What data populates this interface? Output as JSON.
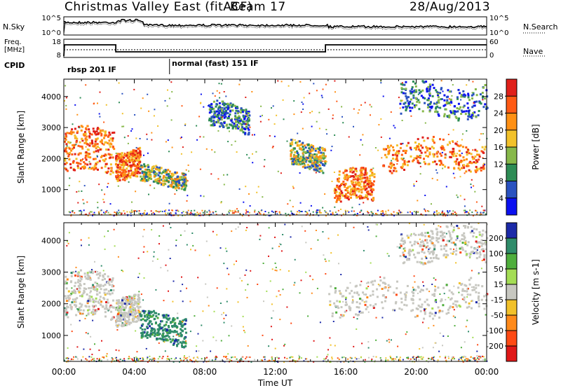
{
  "header": {
    "title": "Christmas Valley East (fitACF)",
    "beam": "Beam 17",
    "date": "28/Aug/2013"
  },
  "summary_panel": {
    "nsky_label": "N.Sky",
    "nsearch_label": "N.Search",
    "nsky_ticks": [
      "10^5",
      "10^0"
    ],
    "nsearch_ticks": [
      "10^5",
      "10^0"
    ],
    "freq_label": "Freq.",
    "freq_unit": "[MHz]",
    "freq_ticks": [
      "18",
      "8"
    ],
    "nave_label": "Nave",
    "nave_ticks": [
      "60",
      "0"
    ],
    "cpid_label": "CPID",
    "cpid_segments": [
      {
        "label": "rbsp 201 IF",
        "start_hour": 0
      },
      {
        "label": "normal (fast) 151 IF",
        "start_hour": 6
      }
    ]
  },
  "chart_data": [
    {
      "type": "heatmap",
      "panel": "power",
      "ylabel": "Slant Range [km]",
      "y_ticks": [
        1000,
        2000,
        3000,
        4000
      ],
      "ylim": [
        180,
        4560
      ],
      "xlim": [
        0,
        24
      ],
      "colorbar_label": "Power [dB]",
      "colorbar_ticks": [
        "28",
        "24",
        "20",
        "16",
        "12",
        "8",
        "4"
      ],
      "colorbar_colors": [
        "#e0201a",
        "#ff5a14",
        "#ff9014",
        "#f2c12a",
        "#87b84a",
        "#2d8c55",
        "#2a52c0",
        "#0b10f0"
      ],
      "regions": [
        {
          "t": [
            0.0,
            2.8
          ],
          "r": [
            1550,
            2950
          ],
          "level": "high"
        },
        {
          "t": [
            2.9,
            4.3
          ],
          "r": [
            1450,
            2350
          ],
          "level": "high"
        },
        {
          "t": [
            4.3,
            6.9
          ],
          "r": [
            1150,
            1700
          ],
          "level": "mid"
        },
        {
          "t": [
            8.2,
            10.5
          ],
          "r": [
            2900,
            3750
          ],
          "level": "low"
        },
        {
          "t": [
            12.8,
            14.8
          ],
          "r": [
            1700,
            2500
          ],
          "level": "mid"
        },
        {
          "t": [
            15.3,
            17.6
          ],
          "r": [
            600,
            1600
          ],
          "level": "high"
        },
        {
          "t": [
            18.0,
            24.0
          ],
          "r": [
            1700,
            2600
          ],
          "level": "high"
        },
        {
          "t": [
            19.0,
            24.0
          ],
          "r": [
            3400,
            4400
          ],
          "level": "low"
        }
      ]
    },
    {
      "type": "heatmap",
      "panel": "velocity",
      "ylabel": "Slant Range [km]",
      "y_ticks": [
        1000,
        2000,
        3000,
        4000
      ],
      "ylim": [
        180,
        4560
      ],
      "xlim": [
        0,
        24
      ],
      "xlabel": "Time UT",
      "x_ticks": [
        "00:00",
        "04:00",
        "08:00",
        "12:00",
        "16:00",
        "20:00",
        "00:00"
      ],
      "colorbar_label": "Velocity [m s-1]",
      "colorbar_ticks": [
        "200",
        "100",
        "50",
        "15",
        "-15",
        "-50",
        "-100",
        "-200"
      ],
      "colorbar_colors": [
        "#1c2aa8",
        "#2f8c6a",
        "#4fae3c",
        "#a4dd55",
        "#c7c7c0",
        "#f2c12a",
        "#ff8a1a",
        "#ff4a14",
        "#e01818"
      ],
      "regions": [
        {
          "t": [
            0.0,
            2.8
          ],
          "r": [
            1550,
            2950
          ],
          "level": "neutral"
        },
        {
          "t": [
            2.9,
            4.3
          ],
          "r": [
            1450,
            2350
          ],
          "level": "neutral"
        },
        {
          "t": [
            4.3,
            6.9
          ],
          "r": [
            800,
            1700
          ],
          "level": "toward"
        },
        {
          "t": [
            15.0,
            24.0
          ],
          "r": [
            1700,
            2700
          ],
          "level": "neutral"
        },
        {
          "t": [
            19.0,
            24.0
          ],
          "r": [
            3400,
            4400
          ],
          "level": "neutral"
        }
      ]
    }
  ]
}
